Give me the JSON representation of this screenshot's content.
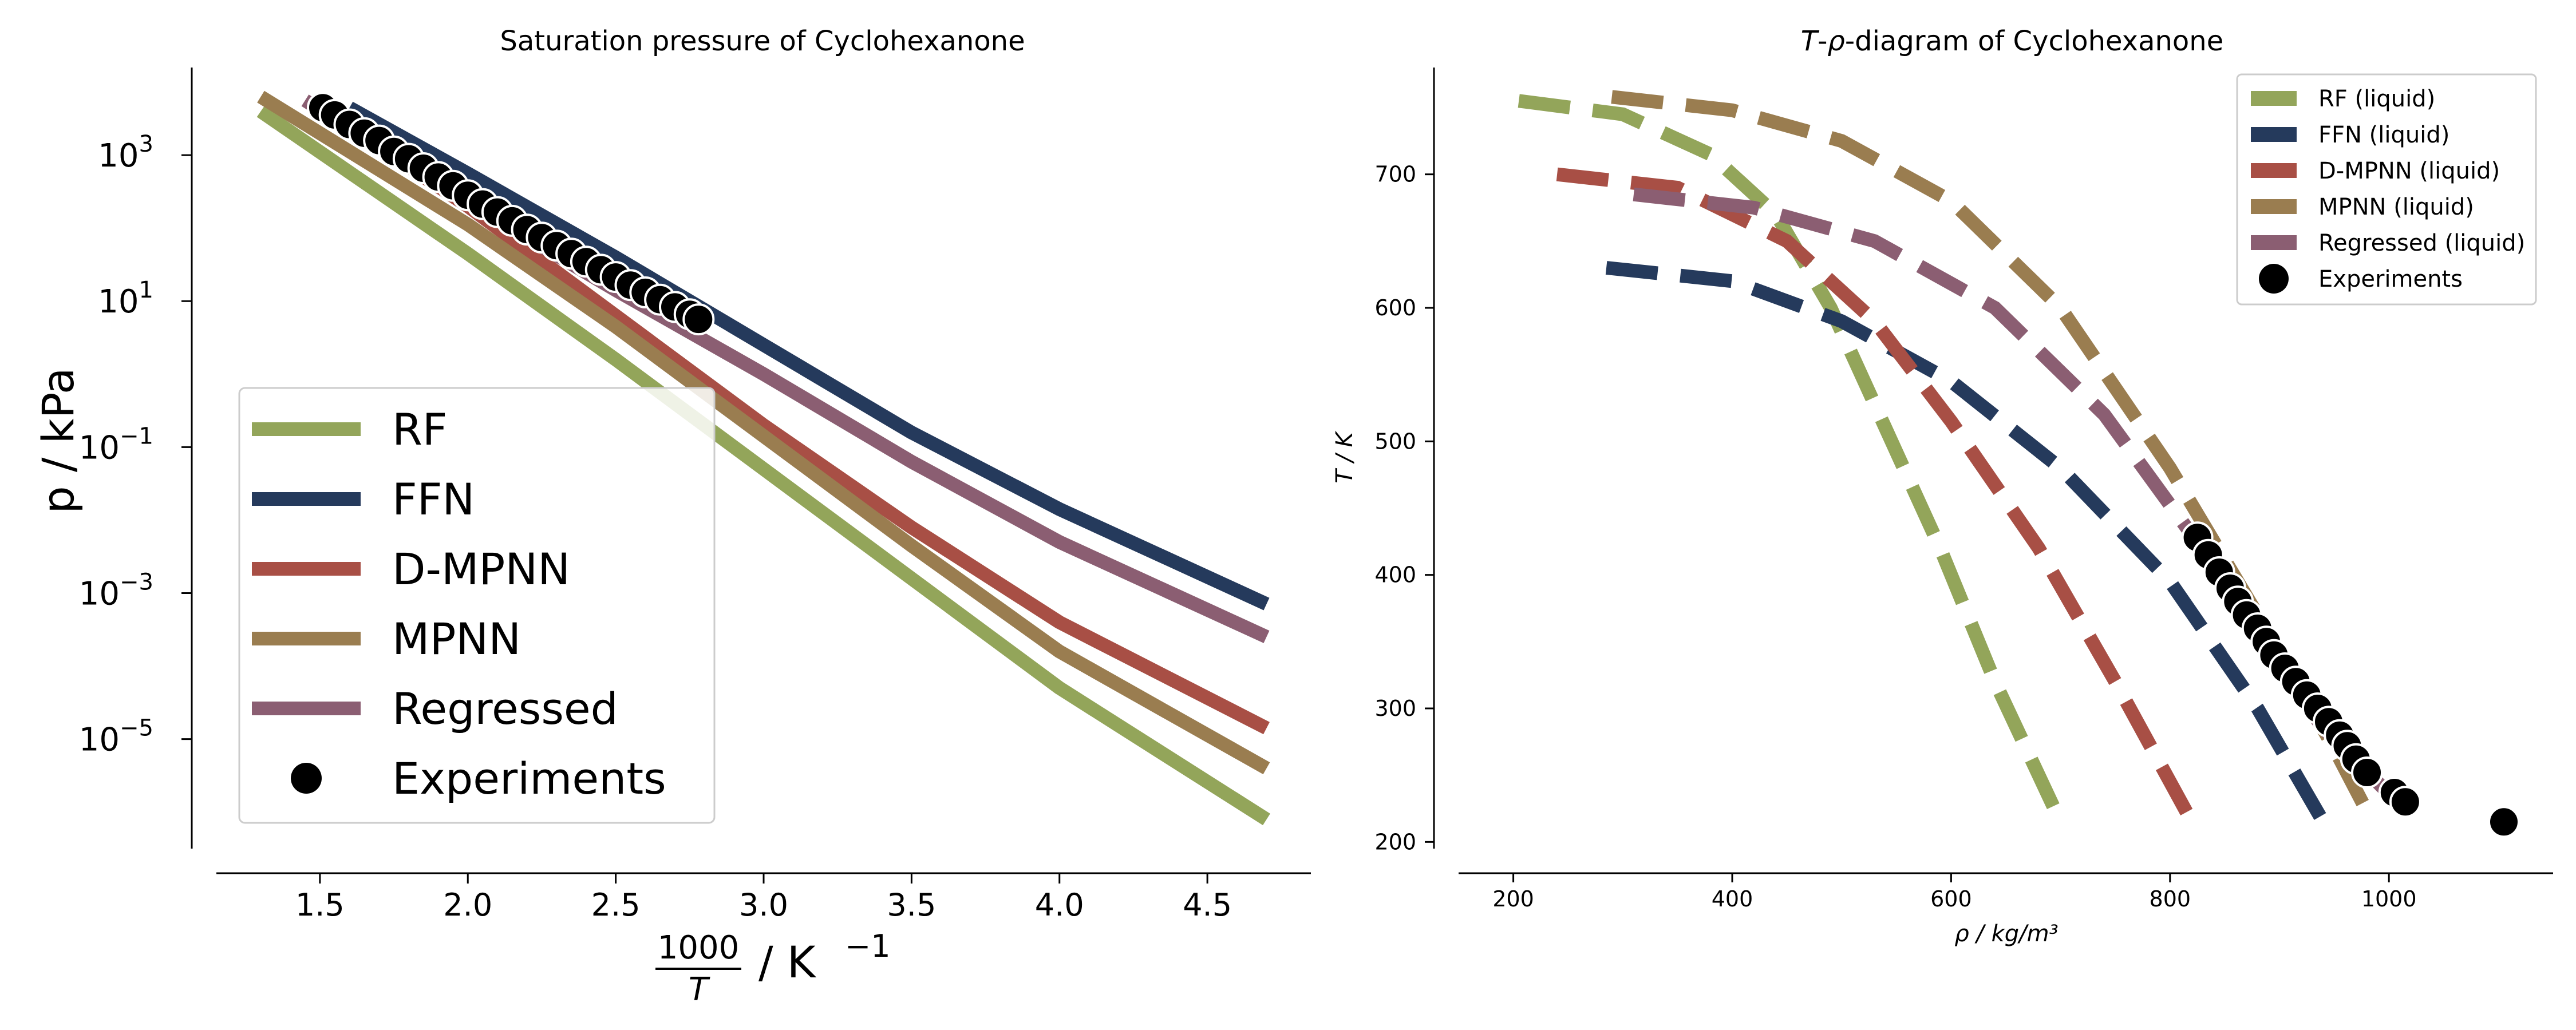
{
  "chart_data": [
    {
      "type": "line",
      "title": "Saturation pressure of Cyclohexanone",
      "xlabel_num": "1000",
      "xlabel_den": "T",
      "xlabel_unit": "/ K",
      "xlabel_exp": "−1",
      "ylabel": "p / kPa",
      "y_scale": "log",
      "xlim": [
        1.15,
        4.85
      ],
      "ylim_log10": [
        -6.5,
        4.2
      ],
      "x_ticks": [
        "1.5",
        "2.0",
        "2.5",
        "3.0",
        "3.5",
        "4.0",
        "4.5"
      ],
      "x_tick_values": [
        1.5,
        2.0,
        2.5,
        3.0,
        3.5,
        4.0,
        4.5
      ],
      "y_ticks": [
        {
          "base": "10",
          "exp": "3",
          "value_log10": 3
        },
        {
          "base": "10",
          "exp": "1",
          "value_log10": 1
        },
        {
          "base": "10",
          "exp": "−1",
          "value_log10": -1
        },
        {
          "base": "10",
          "exp": "−3",
          "value_log10": -3
        },
        {
          "base": "10",
          "exp": "−5",
          "value_log10": -5
        }
      ],
      "grid": false,
      "legend_position": "lower-left",
      "series": [
        {
          "name": "RF",
          "color": "#93A55A",
          "style": "solid",
          "x": [
            1.3,
            2.0,
            2.5,
            3.0,
            3.5,
            4.0,
            4.7
          ],
          "log10_y": [
            3.6,
            1.65,
            0.2,
            -1.3,
            -2.8,
            -4.3,
            -6.1
          ]
        },
        {
          "name": "FFN",
          "color": "#253A5C",
          "style": "solid",
          "x": [
            1.6,
            2.0,
            2.5,
            3.0,
            3.5,
            4.0,
            4.7
          ],
          "log10_y": [
            3.65,
            2.75,
            1.6,
            0.4,
            -0.8,
            -1.85,
            -3.15
          ]
        },
        {
          "name": "D-MPNN",
          "color": "#A84F45",
          "style": "solid",
          "x": [
            1.5,
            2.0,
            2.5,
            3.0,
            3.5,
            4.0,
            4.7
          ],
          "log10_y": [
            3.65,
            2.3,
            0.8,
            -0.7,
            -2.1,
            -3.4,
            -4.85
          ]
        },
        {
          "name": "MPNN",
          "color": "#9A7D50",
          "style": "solid",
          "x": [
            1.3,
            2.0,
            2.5,
            3.0,
            3.5,
            4.0,
            4.7
          ],
          "log10_y": [
            3.8,
            2.05,
            0.65,
            -0.85,
            -2.35,
            -3.8,
            -5.4
          ]
        },
        {
          "name": "Regressed",
          "color": "#8B5E72",
          "style": "solid",
          "x": [
            1.45,
            2.0,
            2.5,
            3.0,
            3.5,
            4.0,
            4.7
          ],
          "log10_y": [
            3.75,
            2.35,
            1.15,
            0.0,
            -1.2,
            -2.3,
            -3.6
          ]
        }
      ],
      "experiments": {
        "name": "Experiments",
        "color": "#000000",
        "x": [
          1.51,
          1.55,
          1.6,
          1.65,
          1.7,
          1.75,
          1.8,
          1.85,
          1.9,
          1.95,
          2.0,
          2.05,
          2.1,
          2.15,
          2.2,
          2.25,
          2.3,
          2.35,
          2.4,
          2.45,
          2.5,
          2.55,
          2.6,
          2.65,
          2.7,
          2.75,
          2.78
        ],
        "log10_y": [
          3.65,
          3.55,
          3.42,
          3.3,
          3.2,
          3.05,
          2.95,
          2.82,
          2.7,
          2.58,
          2.45,
          2.33,
          2.22,
          2.1,
          1.98,
          1.87,
          1.76,
          1.65,
          1.54,
          1.43,
          1.33,
          1.22,
          1.12,
          1.02,
          0.92,
          0.82,
          0.75
        ]
      }
    },
    {
      "type": "line",
      "title_italic": "T",
      "title_mid": "-",
      "title_rho": "ρ",
      "title_rest": "-diagram of Cyclohexanone",
      "xlabel": "ρ / kg/m³",
      "ylabel": "T / K",
      "xlim": [
        150,
        1150
      ],
      "ylim": [
        195,
        780
      ],
      "x_ticks": [
        "200",
        "400",
        "600",
        "800",
        "1000"
      ],
      "x_tick_values": [
        200,
        400,
        600,
        800,
        1000
      ],
      "y_ticks": [
        "200",
        "300",
        "400",
        "500",
        "600",
        "700"
      ],
      "y_tick_values": [
        200,
        300,
        400,
        500,
        600,
        700
      ],
      "grid": false,
      "legend_position": "top-right",
      "series": [
        {
          "name": "RF (liquid)",
          "color": "#93A55A",
          "style": "dashed",
          "x": [
            205,
            300,
            380,
            440,
            490,
            540,
            590,
            640,
            700
          ],
          "y": [
            755,
            745,
            715,
            670,
            600,
            510,
            420,
            320,
            215
          ]
        },
        {
          "name": "FFN (liquid)",
          "color": "#253A5C",
          "style": "dashed",
          "x": [
            285,
            400,
            500,
            600,
            700,
            800,
            880,
            940
          ],
          "y": [
            630,
            620,
            590,
            545,
            480,
            395,
            300,
            215
          ]
        },
        {
          "name": "D-MPNN (liquid)",
          "color": "#A84F45",
          "style": "dashed",
          "x": [
            240,
            350,
            450,
            530,
            600,
            680,
            750,
            820
          ],
          "y": [
            700,
            690,
            650,
            590,
            515,
            420,
            320,
            215
          ]
        },
        {
          "name": "MPNN (liquid)",
          "color": "#9A7D50",
          "style": "dashed",
          "x": [
            290,
            400,
            500,
            600,
            700,
            800,
            880,
            950,
            985
          ],
          "y": [
            758,
            748,
            725,
            680,
            600,
            480,
            370,
            270,
            215
          ]
        },
        {
          "name": "Regressed (liquid)",
          "color": "#8B5E72",
          "style": "dashed",
          "x": [
            310,
            420,
            530,
            640,
            740,
            820,
            880,
            940,
            1010
          ],
          "y": [
            685,
            675,
            650,
            600,
            520,
            430,
            355,
            285,
            228
          ]
        }
      ],
      "experiments": {
        "name": "Experiments",
        "color": "#000000",
        "x": [
          825,
          835,
          845,
          855,
          862,
          870,
          880,
          888,
          895,
          905,
          915,
          925,
          935,
          945,
          955,
          962,
          970,
          980,
          1005,
          1015,
          1105
        ],
        "y": [
          428,
          415,
          402,
          390,
          380,
          370,
          360,
          350,
          340,
          330,
          320,
          310,
          300,
          290,
          280,
          272,
          262,
          252,
          237,
          230,
          215
        ]
      }
    }
  ]
}
